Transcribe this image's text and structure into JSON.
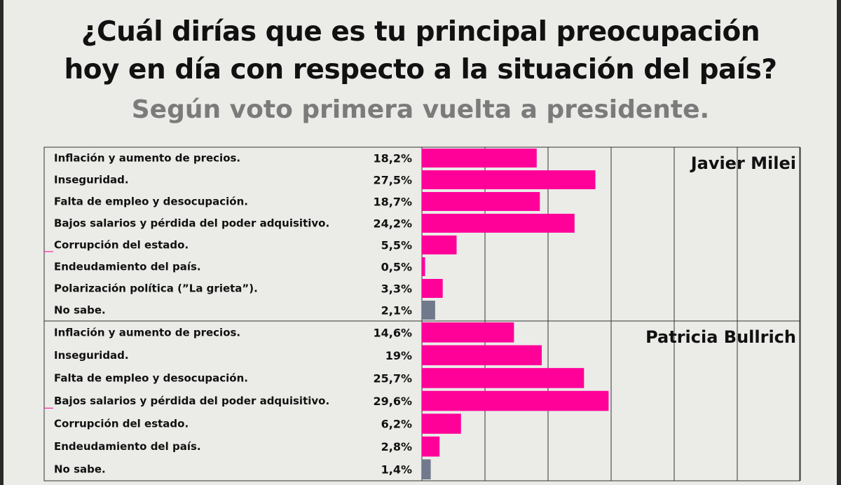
{
  "chart_data": {
    "type": "bar",
    "orientation": "horizontal",
    "title": "¿Cuál dirías que es tu principal preocupación hoy en día con respecto a la situación del país?",
    "title_lines": [
      "¿Cuál dirías que es tu principal preocupación",
      "hoy en día con respecto a la situación del país?"
    ],
    "subtitle": "Según voto primera vuelta a presidente.",
    "xlim": [
      0,
      60
    ],
    "grid": true,
    "colors": {
      "main": "#ff0099",
      "no_sabe": "#717a8c"
    },
    "groups": [
      {
        "name": "Javier Milei",
        "categories": [
          "Inflación y aumento de precios.",
          "Inseguridad.",
          "Falta de empleo y desocupación.",
          "Bajos salarios y pérdida del poder adquisitivo.",
          "Corrupción del estado.",
          "Endeudamiento del país.",
          "Polarización política (”La grieta”).",
          "No sabe."
        ],
        "values": [
          18.2,
          27.5,
          18.7,
          24.2,
          5.5,
          0.5,
          3.3,
          2.1
        ],
        "labels": [
          "18,2%",
          "27,5%",
          "18,7%",
          "24,2%",
          "5,5%",
          "0,5%",
          "3,3%",
          "2,1%"
        ]
      },
      {
        "name": "Patricia Bullrich",
        "categories": [
          "Inflación y aumento de precios.",
          "Inseguridad.",
          "Falta de empleo y desocupación.",
          "Bajos salarios y pérdida del poder adquisitivo.",
          "Corrupción del estado.",
          "Endeudamiento del país.",
          "No sabe."
        ],
        "values": [
          14.6,
          19,
          25.7,
          29.6,
          6.2,
          2.8,
          1.4
        ],
        "labels": [
          "14,6%",
          "19%",
          "25,7%",
          "29,6%",
          "6,2%",
          "2,8%",
          "1,4%"
        ]
      }
    ]
  }
}
